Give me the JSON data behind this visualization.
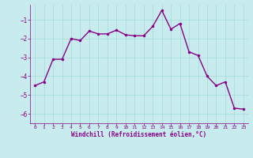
{
  "x": [
    0,
    1,
    2,
    3,
    4,
    5,
    6,
    7,
    8,
    9,
    10,
    11,
    12,
    13,
    14,
    15,
    16,
    17,
    18,
    19,
    20,
    21,
    22,
    23
  ],
  "y": [
    -4.5,
    -4.3,
    -3.1,
    -3.1,
    -2.0,
    -2.1,
    -1.6,
    -1.75,
    -1.75,
    -1.55,
    -1.8,
    -1.85,
    -1.85,
    -1.35,
    -0.5,
    -1.5,
    -1.2,
    -2.7,
    -2.9,
    -4.0,
    -4.5,
    -4.3,
    -5.7,
    -5.75
  ],
  "line_color": "#880088",
  "marker": "o",
  "marker_size": 2.0,
  "bg_color": "#c8ecee",
  "grid_color": "#aadddd",
  "xlabel": "Windchill (Refroidissement éolien,°C)",
  "xlabel_color": "#880088",
  "tick_color": "#880088",
  "ylim": [
    -6.5,
    -0.2
  ],
  "xlim": [
    -0.5,
    23.5
  ],
  "yticks": [
    -6,
    -5,
    -4,
    -3,
    -2,
    -1
  ],
  "xticks": [
    0,
    1,
    2,
    3,
    4,
    5,
    6,
    7,
    8,
    9,
    10,
    11,
    12,
    13,
    14,
    15,
    16,
    17,
    18,
    19,
    20,
    21,
    22,
    23
  ],
  "line_width": 1.0
}
